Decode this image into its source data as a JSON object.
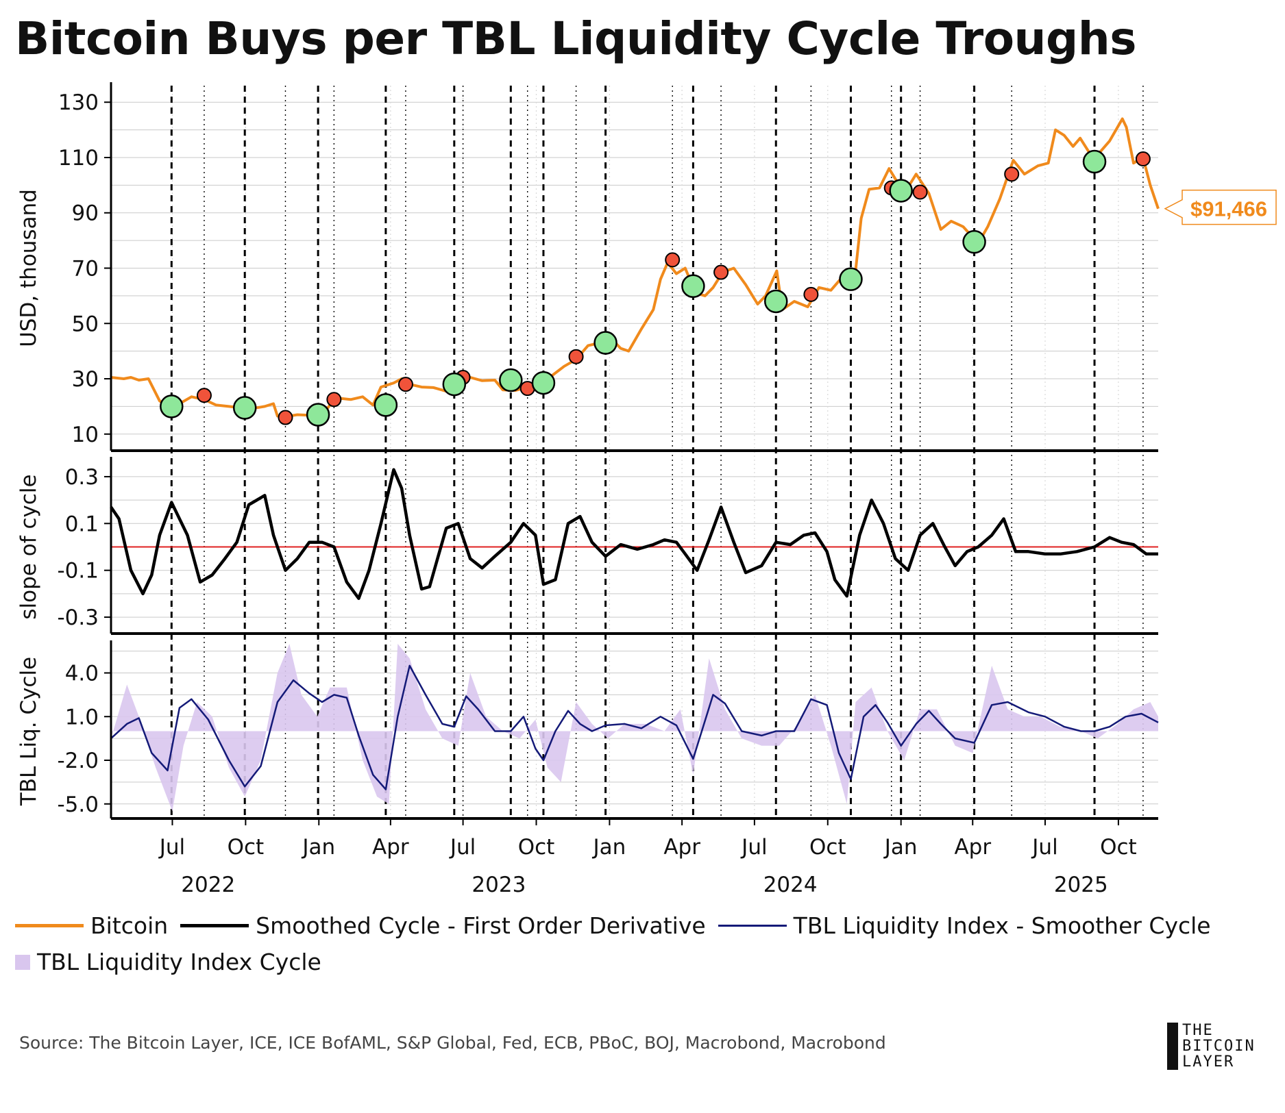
{
  "title": "Bitcoin Buys per TBL Liquidity Cycle Troughs",
  "source": "Source: The Bitcoin Layer, ICE, ICE BofAML, S&P Global, Fed, ECB, PBoC, BOJ, Macrobond, Macrobond",
  "logo": [
    "THE",
    "BITCOIN",
    "LAYER"
  ],
  "legend": [
    {
      "label": "Bitcoin",
      "color": "#f08a1c",
      "kind": "line"
    },
    {
      "label": "Smoothed Cycle - First Order Derivative",
      "color": "#000000",
      "kind": "line"
    },
    {
      "label": "TBL Liquidity Index - Smoother Cycle",
      "color": "#141a78",
      "kind": "line"
    },
    {
      "label": "TBL Liquidity Index Cycle",
      "color": "#d9c6ee",
      "kind": "box"
    }
  ],
  "colors": {
    "bitcoin": "#f08a1c",
    "derivative": "#000000",
    "smoother": "#141a78",
    "cycle": "#d9c6ee",
    "buy": "#8ee79a",
    "sell": "#f0533a",
    "zero_line": "#e02020",
    "price_tag": "#f08a1c"
  },
  "chart_data": {
    "type": "line",
    "x_axis": {
      "range": [
        "2022-04-15",
        "2025-11-20"
      ],
      "month_ticks": [
        {
          "label": "Jul",
          "date": "2022-07-01"
        },
        {
          "label": "Oct",
          "date": "2022-10-01"
        },
        {
          "label": "Jan",
          "date": "2023-01-01"
        },
        {
          "label": "Apr",
          "date": "2023-04-01"
        },
        {
          "label": "Jul",
          "date": "2023-07-01"
        },
        {
          "label": "Oct",
          "date": "2023-10-01"
        },
        {
          "label": "Jan",
          "date": "2024-01-01"
        },
        {
          "label": "Apr",
          "date": "2024-04-01"
        },
        {
          "label": "Jul",
          "date": "2024-07-01"
        },
        {
          "label": "Oct",
          "date": "2024-10-01"
        },
        {
          "label": "Jan",
          "date": "2025-01-01"
        },
        {
          "label": "Apr",
          "date": "2025-04-01"
        },
        {
          "label": "Jul",
          "date": "2025-07-01"
        },
        {
          "label": "Oct",
          "date": "2025-10-01"
        }
      ],
      "year_labels": [
        {
          "label": "2022",
          "date": "2022-08-15"
        },
        {
          "label": "2023",
          "date": "2023-08-15"
        },
        {
          "label": "2024",
          "date": "2024-08-15"
        },
        {
          "label": "2025",
          "date": "2025-08-15"
        }
      ]
    },
    "panels": [
      {
        "name": "bitcoin",
        "ylabel": "USD, thousand",
        "ylim": [
          4,
          136
        ],
        "ticks": [
          10,
          30,
          50,
          70,
          90,
          110,
          130
        ],
        "tick_labels": [
          "10",
          "30",
          "50",
          "70",
          "90",
          "110",
          "130"
        ]
      },
      {
        "name": "derivative",
        "ylabel": "slope of cycle",
        "ylim": [
          -0.37,
          0.37
        ],
        "ticks": [
          -0.3,
          -0.1,
          0.1,
          0.3
        ],
        "tick_labels": [
          "-0.3",
          "-0.1",
          "0.1",
          "0.3"
        ],
        "zero_line": 0
      },
      {
        "name": "liquidity",
        "ylabel": "TBL Liq. Cycle",
        "ylim": [
          -6,
          6
        ],
        "ticks": [
          -5,
          -2,
          1,
          4
        ],
        "tick_labels": [
          "-5.0",
          "-2.0",
          "1.0",
          "4.0"
        ]
      }
    ],
    "bitcoin_series": {
      "name": "Bitcoin",
      "x": [
        "2022-04-15",
        "2022-05-01",
        "2022-05-10",
        "2022-05-20",
        "2022-06-01",
        "2022-06-15",
        "2022-06-25",
        "2022-07-10",
        "2022-07-25",
        "2022-08-10",
        "2022-08-25",
        "2022-09-10",
        "2022-09-25",
        "2022-10-10",
        "2022-10-25",
        "2022-11-05",
        "2022-11-10",
        "2022-11-20",
        "2022-12-05",
        "2022-12-20",
        "2023-01-05",
        "2023-01-15",
        "2023-01-25",
        "2023-02-10",
        "2023-02-25",
        "2023-03-10",
        "2023-03-20",
        "2023-04-05",
        "2023-04-15",
        "2023-04-25",
        "2023-05-10",
        "2023-05-25",
        "2023-06-10",
        "2023-06-15",
        "2023-06-25",
        "2023-07-10",
        "2023-07-25",
        "2023-08-10",
        "2023-08-20",
        "2023-09-05",
        "2023-09-20",
        "2023-10-05",
        "2023-10-20",
        "2023-11-05",
        "2023-11-20",
        "2023-12-05",
        "2023-12-20",
        "2024-01-05",
        "2024-01-15",
        "2024-01-25",
        "2024-02-10",
        "2024-02-25",
        "2024-03-05",
        "2024-03-14",
        "2024-03-25",
        "2024-04-05",
        "2024-04-18",
        "2024-04-30",
        "2024-05-10",
        "2024-05-22",
        "2024-06-05",
        "2024-06-20",
        "2024-07-05",
        "2024-07-15",
        "2024-07-29",
        "2024-08-05",
        "2024-08-20",
        "2024-09-06",
        "2024-09-20",
        "2024-10-05",
        "2024-10-20",
        "2024-11-05",
        "2024-11-12",
        "2024-11-22",
        "2024-12-05",
        "2024-12-17",
        "2025-01-05",
        "2025-01-20",
        "2025-02-05",
        "2025-02-20",
        "2025-03-05",
        "2025-03-20",
        "2025-04-08",
        "2025-04-20",
        "2025-05-05",
        "2025-05-22",
        "2025-06-05",
        "2025-06-22",
        "2025-07-05",
        "2025-07-14",
        "2025-07-25",
        "2025-08-05",
        "2025-08-14",
        "2025-08-25",
        "2025-09-05",
        "2025-09-20",
        "2025-10-06",
        "2025-10-11",
        "2025-10-20",
        "2025-11-01",
        "2025-11-10",
        "2025-11-20"
      ],
      "values": [
        30.5,
        30,
        30.5,
        29.5,
        30,
        22,
        20,
        21,
        23.5,
        22.5,
        20.5,
        20,
        19.5,
        19.3,
        20,
        21,
        16.5,
        16.3,
        17,
        16.8,
        16.8,
        20.5,
        23,
        22.5,
        23.5,
        20.5,
        27,
        28.5,
        30,
        28,
        27,
        26.8,
        25.5,
        30,
        30.2,
        30.5,
        29.3,
        29.5,
        26,
        25.8,
        27,
        28,
        31,
        34.5,
        37,
        42,
        43,
        44,
        41,
        40,
        48,
        55,
        66,
        72,
        68,
        70,
        61,
        60,
        63,
        68.5,
        70,
        64,
        57,
        60,
        69,
        55,
        58,
        56,
        63,
        62,
        67,
        69,
        88,
        98.5,
        99,
        106,
        97,
        104,
        97,
        84,
        87,
        85,
        79,
        85,
        95,
        109,
        104,
        107,
        108,
        120,
        118,
        114,
        117,
        112,
        111,
        116,
        124,
        121,
        108,
        110,
        100,
        91.5
      ]
    },
    "buy_markers": {
      "x": [
        "2022-06-30",
        "2022-09-30",
        "2022-12-31",
        "2023-03-26",
        "2023-06-20",
        "2023-08-30",
        "2023-10-10",
        "2023-12-27",
        "2024-04-15",
        "2024-07-28",
        "2024-10-30",
        "2025-01-01",
        "2025-04-03",
        "2025-09-01"
      ],
      "values": [
        20,
        19.5,
        17,
        20.5,
        28,
        29.5,
        28.5,
        43,
        63.5,
        58,
        66,
        98,
        79.5,
        108.5
      ]
    },
    "sell_markers": {
      "x": [
        "2022-08-10",
        "2022-11-20",
        "2023-01-20",
        "2023-04-20",
        "2023-07-01",
        "2023-09-20",
        "2023-11-20",
        "2024-03-20",
        "2024-05-20",
        "2024-09-10",
        "2024-12-20",
        "2025-01-25",
        "2025-05-20",
        "2025-11-01"
      ],
      "values": [
        24,
        16,
        22.5,
        28,
        30.5,
        26.5,
        38,
        73,
        68.5,
        60.5,
        99,
        97.5,
        104,
        109.5
      ]
    },
    "buy_lines": [
      "2022-06-30",
      "2022-09-30",
      "2022-12-31",
      "2023-03-26",
      "2023-06-20",
      "2023-08-30",
      "2023-10-10",
      "2023-12-27",
      "2024-04-15",
      "2024-07-28",
      "2024-10-30",
      "2025-01-01",
      "2025-04-03",
      "2025-09-01"
    ],
    "sell_lines": [
      "2022-08-10",
      "2022-11-20",
      "2023-01-20",
      "2023-04-20",
      "2023-07-01",
      "2023-09-20",
      "2023-11-20",
      "2024-03-20",
      "2024-05-20",
      "2024-09-10",
      "2024-12-20",
      "2025-01-25",
      "2025-05-20",
      "2025-11-01"
    ],
    "derivative_series": {
      "name": "Smoothed Cycle - First Order Derivative",
      "x": [
        "2022-04-15",
        "2022-04-25",
        "2022-05-10",
        "2022-05-25",
        "2022-06-05",
        "2022-06-15",
        "2022-06-30",
        "2022-07-20",
        "2022-08-05",
        "2022-08-20",
        "2022-09-05",
        "2022-09-20",
        "2022-10-05",
        "2022-10-25",
        "2022-11-05",
        "2022-11-20",
        "2022-12-05",
        "2022-12-20",
        "2023-01-05",
        "2023-01-20",
        "2023-02-05",
        "2023-02-20",
        "2023-03-05",
        "2023-03-20",
        "2023-04-05",
        "2023-04-15",
        "2023-04-25",
        "2023-05-10",
        "2023-05-20",
        "2023-05-30",
        "2023-06-10",
        "2023-06-25",
        "2023-07-10",
        "2023-07-25",
        "2023-08-10",
        "2023-08-30",
        "2023-09-15",
        "2023-09-30",
        "2023-10-10",
        "2023-10-25",
        "2023-11-10",
        "2023-11-25",
        "2023-12-10",
        "2023-12-27",
        "2024-01-15",
        "2024-02-05",
        "2024-02-25",
        "2024-03-10",
        "2024-03-25",
        "2024-04-05",
        "2024-04-20",
        "2024-05-05",
        "2024-05-20",
        "2024-06-05",
        "2024-06-20",
        "2024-07-10",
        "2024-07-28",
        "2024-08-15",
        "2024-09-01",
        "2024-09-15",
        "2024-09-30",
        "2024-10-10",
        "2024-10-25",
        "2024-11-10",
        "2024-11-25",
        "2024-12-10",
        "2024-12-25",
        "2025-01-10",
        "2025-01-25",
        "2025-02-10",
        "2025-02-25",
        "2025-03-10",
        "2025-03-25",
        "2025-04-08",
        "2025-04-25",
        "2025-05-10",
        "2025-05-25",
        "2025-06-10",
        "2025-07-01",
        "2025-07-20",
        "2025-08-10",
        "2025-09-01",
        "2025-09-20",
        "2025-10-05",
        "2025-10-20",
        "2025-11-05",
        "2025-11-20"
      ],
      "values": [
        0.17,
        0.12,
        -0.1,
        -0.2,
        -0.12,
        0.05,
        0.19,
        0.05,
        -0.15,
        -0.12,
        -0.05,
        0.02,
        0.18,
        0.22,
        0.05,
        -0.1,
        -0.05,
        0.02,
        0.02,
        0.0,
        -0.15,
        -0.22,
        -0.1,
        0.1,
        0.33,
        0.25,
        0.05,
        -0.18,
        -0.17,
        -0.05,
        0.08,
        0.1,
        -0.05,
        -0.09,
        -0.04,
        0.02,
        0.1,
        0.05,
        -0.16,
        -0.14,
        0.1,
        0.13,
        0.02,
        -0.04,
        0.01,
        -0.01,
        0.01,
        0.03,
        0.02,
        -0.03,
        -0.1,
        0.03,
        0.17,
        0.02,
        -0.11,
        -0.08,
        0.02,
        0.01,
        0.05,
        0.06,
        -0.02,
        -0.14,
        -0.21,
        0.05,
        0.2,
        0.1,
        -0.05,
        -0.1,
        0.05,
        0.1,
        0.0,
        -0.08,
        -0.02,
        0.0,
        0.05,
        0.12,
        -0.02,
        -0.02,
        -0.03,
        -0.03,
        -0.02,
        0.0,
        0.04,
        0.02,
        0.01,
        -0.03,
        -0.03
      ]
    },
    "smoother_series": {
      "name": "TBL Liquidity Index - Smoother Cycle",
      "x": [
        "2022-04-15",
        "2022-05-05",
        "2022-05-20",
        "2022-06-05",
        "2022-06-25",
        "2022-07-10",
        "2022-07-25",
        "2022-08-15",
        "2022-09-10",
        "2022-09-30",
        "2022-10-20",
        "2022-11-10",
        "2022-11-30",
        "2022-12-20",
        "2023-01-05",
        "2023-01-20",
        "2023-02-05",
        "2023-02-20",
        "2023-03-10",
        "2023-03-26",
        "2023-04-10",
        "2023-04-25",
        "2023-05-15",
        "2023-06-05",
        "2023-06-20",
        "2023-07-05",
        "2023-07-20",
        "2023-08-10",
        "2023-08-30",
        "2023-09-15",
        "2023-09-30",
        "2023-10-10",
        "2023-10-25",
        "2023-11-10",
        "2023-11-25",
        "2023-12-10",
        "2023-12-27",
        "2024-01-20",
        "2024-02-10",
        "2024-03-05",
        "2024-03-25",
        "2024-04-15",
        "2024-05-10",
        "2024-05-25",
        "2024-06-15",
        "2024-07-10",
        "2024-07-28",
        "2024-08-20",
        "2024-09-10",
        "2024-09-30",
        "2024-10-15",
        "2024-10-30",
        "2024-11-15",
        "2024-11-30",
        "2024-12-15",
        "2025-01-01",
        "2025-01-20",
        "2025-02-05",
        "2025-02-20",
        "2025-03-10",
        "2025-04-03",
        "2025-04-25",
        "2025-05-15",
        "2025-06-10",
        "2025-07-01",
        "2025-07-25",
        "2025-08-15",
        "2025-09-01",
        "2025-09-20",
        "2025-10-10",
        "2025-10-30",
        "2025-11-20"
      ],
      "values": [
        -0.5,
        0.5,
        0.9,
        -1.5,
        -2.7,
        1.6,
        2.2,
        0.8,
        -2.0,
        -3.8,
        -2.4,
        2.0,
        3.5,
        2.6,
        2.0,
        2.5,
        2.3,
        -0.3,
        -3.0,
        -4.0,
        1.0,
        4.5,
        2.5,
        0.5,
        0.3,
        2.4,
        1.5,
        0.0,
        0.0,
        1.0,
        -1.2,
        -2.0,
        0.0,
        1.4,
        0.5,
        0.0,
        0.4,
        0.5,
        0.2,
        1.0,
        0.4,
        -1.9,
        2.5,
        1.9,
        0.0,
        -0.3,
        0.0,
        0.0,
        2.2,
        1.8,
        -1.5,
        -3.3,
        1.0,
        1.8,
        0.6,
        -1.0,
        0.5,
        1.4,
        0.5,
        -0.5,
        -0.8,
        1.8,
        2.0,
        1.3,
        1.0,
        0.3,
        0.0,
        0.0,
        0.3,
        1.0,
        1.2,
        0.6
      ]
    },
    "cycle_series": {
      "name": "TBL Liquidity Index Cycle",
      "x": [
        "2022-04-15",
        "2022-05-05",
        "2022-05-20",
        "2022-06-10",
        "2022-07-01",
        "2022-07-15",
        "2022-08-01",
        "2022-08-20",
        "2022-09-10",
        "2022-09-30",
        "2022-10-20",
        "2022-11-10",
        "2022-11-25",
        "2022-12-10",
        "2022-12-30",
        "2023-01-15",
        "2023-02-05",
        "2023-02-25",
        "2023-03-15",
        "2023-03-30",
        "2023-04-10",
        "2023-04-25",
        "2023-05-15",
        "2023-06-05",
        "2023-06-25",
        "2023-07-10",
        "2023-07-30",
        "2023-08-20",
        "2023-09-10",
        "2023-09-30",
        "2023-10-15",
        "2023-11-01",
        "2023-11-20",
        "2023-12-10",
        "2023-12-30",
        "2024-01-20",
        "2024-02-15",
        "2024-03-10",
        "2024-03-30",
        "2024-04-15",
        "2024-05-05",
        "2024-05-25",
        "2024-06-15",
        "2024-07-10",
        "2024-08-01",
        "2024-08-25",
        "2024-09-15",
        "2024-10-05",
        "2024-10-25",
        "2024-11-05",
        "2024-11-25",
        "2024-12-15",
        "2025-01-05",
        "2025-01-25",
        "2025-02-15",
        "2025-03-10",
        "2025-04-01",
        "2025-04-25",
        "2025-05-15",
        "2025-06-05",
        "2025-06-25",
        "2025-07-20",
        "2025-08-15",
        "2025-09-05",
        "2025-09-30",
        "2025-10-20",
        "2025-11-10",
        "2025-11-20"
      ],
      "values": [
        -0.5,
        3.2,
        1.0,
        -2.5,
        -5.5,
        -1.0,
        2.0,
        1.0,
        -2.5,
        -4.5,
        -2.0,
        4.0,
        6.0,
        2.5,
        1.0,
        3.0,
        3.0,
        -2.0,
        -4.5,
        -5.0,
        6.0,
        5.0,
        1.5,
        -0.5,
        -1.0,
        4.0,
        1.0,
        0.0,
        -0.5,
        0.8,
        -2.5,
        -3.5,
        2.0,
        0.5,
        -0.5,
        0.5,
        0.5,
        0.0,
        1.5,
        -3.0,
        5.0,
        1.5,
        -0.5,
        -1.0,
        -1.0,
        0.5,
        2.5,
        -1.0,
        -5.0,
        2.0,
        3.0,
        0.0,
        -2.0,
        1.5,
        1.5,
        -1.0,
        -1.5,
        4.5,
        1.5,
        1.0,
        1.0,
        0.3,
        0.0,
        -0.5,
        0.5,
        1.5,
        2.0,
        1.0
      ]
    },
    "last_price_label": "$91,466"
  }
}
